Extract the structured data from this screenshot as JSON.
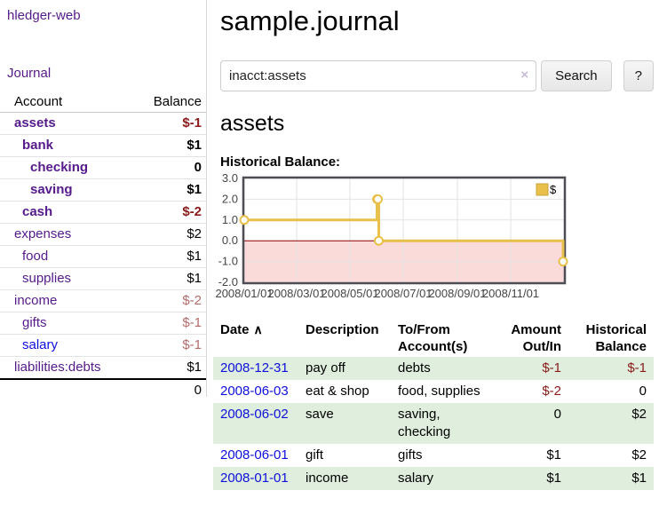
{
  "app": {
    "brand": "hledger-web"
  },
  "sidebar": {
    "nav": [
      {
        "label": "Journal"
      }
    ],
    "accounts_table": {
      "headers": {
        "account": "Account",
        "balance": "Balance"
      },
      "rows": [
        {
          "account": "assets",
          "depth": 0,
          "balance": "$-1",
          "emphasis": true,
          "visited": true
        },
        {
          "account": "bank",
          "depth": 1,
          "balance": "$1",
          "emphasis": true,
          "visited": true
        },
        {
          "account": "checking",
          "depth": 2,
          "balance": "0",
          "emphasis": true,
          "visited": true
        },
        {
          "account": "saving",
          "depth": 2,
          "balance": "$1",
          "emphasis": true,
          "visited": true
        },
        {
          "account": "cash",
          "depth": 1,
          "balance": "$-2",
          "emphasis": true,
          "visited": true
        },
        {
          "account": "expenses",
          "depth": 0,
          "balance": "$2",
          "emphasis": false,
          "visited": true
        },
        {
          "account": "food",
          "depth": 1,
          "balance": "$1",
          "emphasis": false,
          "visited": true
        },
        {
          "account": "supplies",
          "depth": 1,
          "balance": "$1",
          "emphasis": false,
          "visited": true
        },
        {
          "account": "income",
          "depth": 0,
          "balance": "$-2",
          "emphasis": false,
          "visited": true
        },
        {
          "account": "gifts",
          "depth": 1,
          "balance": "$-1",
          "emphasis": false,
          "visited": true
        },
        {
          "account": "salary",
          "depth": 1,
          "balance": "$-1",
          "emphasis": false,
          "visited": false
        },
        {
          "account": "liabilities:debts",
          "depth": 0,
          "balance": "$1",
          "emphasis": false,
          "visited": true
        }
      ],
      "total": "0"
    }
  },
  "header": {
    "title": "sample.journal"
  },
  "search": {
    "value": "inacct:assets",
    "clear_icon": "×",
    "button": "Search",
    "help_button": "?"
  },
  "account_page": {
    "heading": "assets"
  },
  "chart_data": {
    "type": "line",
    "step": true,
    "title": "Historical Balance:",
    "series": [
      {
        "name": "$",
        "color": "#e8c04a",
        "points": [
          [
            "2008-01-01",
            1
          ],
          [
            "2008-06-01",
            2
          ],
          [
            "2008-06-02",
            2
          ],
          [
            "2008-06-03",
            0
          ],
          [
            "2008-12-31",
            -1
          ]
        ]
      }
    ],
    "x_range": [
      "2008-01-01",
      "2009-01-01"
    ],
    "x_ticks": [
      {
        "date": "2008-01-01",
        "label": "2008/01/01"
      },
      {
        "date": "2008-03-01",
        "label": "2008/03/01"
      },
      {
        "date": "2008-05-01",
        "label": "2008/05/01"
      },
      {
        "date": "2008-07-01",
        "label": "2008/07/01"
      },
      {
        "date": "2008-09-01",
        "label": "2008/09/01"
      },
      {
        "date": "2008-11-01",
        "label": "2008/11/01"
      }
    ],
    "y_ticks": [
      "3.0",
      "2.0",
      "1.0",
      "0.0",
      "-1.0",
      "-2.0"
    ],
    "ylim": [
      -2,
      3
    ],
    "grid": true,
    "legend": {
      "position": "top-right",
      "label": "$"
    },
    "zero_line_color": "#8b0000",
    "negative_region_color": "#fbdada",
    "grid_color": "#e2e2e2",
    "border_color": "#4d4d55"
  },
  "journal": {
    "headers": {
      "date": "Date",
      "sort_asc_icon": "∧",
      "description": "Description",
      "account": [
        "To/From",
        "Account(s)"
      ],
      "amount": [
        "Amount",
        "Out/In"
      ],
      "balance": [
        "Historical",
        "Balance"
      ]
    },
    "rows": [
      {
        "date": "2008-12-31",
        "description": "pay off",
        "accounts": "debts",
        "amount": "$-1",
        "balance": "$-1"
      },
      {
        "date": "2008-06-03",
        "description": "eat & shop",
        "accounts": "food, supplies",
        "amount": "$-2",
        "balance": "0"
      },
      {
        "date": "2008-06-02",
        "description": "save",
        "accounts": "saving, checking",
        "amount": "0",
        "balance": "$2"
      },
      {
        "date": "2008-06-01",
        "description": "gift",
        "accounts": "gifts",
        "amount": "$1",
        "balance": "$2"
      },
      {
        "date": "2008-01-01",
        "description": "income",
        "accounts": "salary",
        "amount": "$1",
        "balance": "$1"
      }
    ]
  },
  "colors": {
    "link_purple": "#551a8b",
    "link_blue": "#0f0fdd",
    "negative_strong": "#8b1a1a",
    "negative_dim": "#b36b6b",
    "row_stripe_green": "#dfeedd"
  }
}
